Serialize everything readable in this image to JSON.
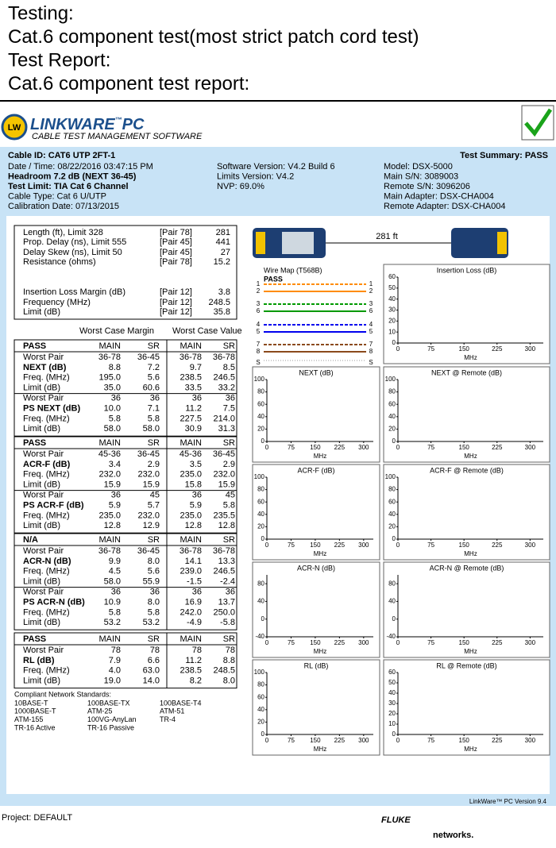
{
  "header": {
    "lines": [
      "Testing:",
      "Cat.6 component test(most strict patch cord test)",
      "Test Report:",
      "Cat.6 component test report:"
    ]
  },
  "logo": {
    "badge": "LW",
    "brand": "LINKWARE",
    "tm": "™",
    "pc": "PC",
    "subtitle": "CABLE TEST MANAGEMENT SOFTWARE"
  },
  "cable_id": "Cable ID: CAT6 UTP 2FT-1",
  "test_summary": "Test Summary: PASS",
  "info": [
    [
      "Date / Time: 08/22/2016  03:47:15 PM",
      "Headroom 7.2 dB (NEXT 36-45)",
      "Test Limit: TIA Cat 6 Channel",
      "Cable Type: Cat 6 U/UTP",
      "Calibration Date: 07/13/2015"
    ],
    [
      "Software Version: V4.2 Build 6",
      "Limits Version: V4.2",
      "NVP: 69.0%"
    ],
    [
      "Model: DSX-5000",
      "Main S/N: 3089003",
      "Remote S/N: 3096206",
      "Main Adapter: DSX-CHA004",
      "Remote Adapter: DSX-CHA004"
    ]
  ],
  "summary": [
    [
      [
        "Length (ft), Limit 328",
        "[Pair 78]",
        "281"
      ],
      [
        "Prop. Delay (ns), Limit 555",
        "[Pair 45]",
        "441"
      ],
      [
        "Delay Skew (ns), Limit 50",
        "[Pair 45]",
        "27"
      ],
      [
        "Resistance (ohms)",
        "[Pair 78]",
        "15.2"
      ]
    ],
    [
      [
        "Insertion Loss Margin (dB)",
        "[Pair 12]",
        "3.8"
      ],
      [
        "Frequency (MHz)",
        "[Pair 12]",
        "248.5"
      ],
      [
        "Limit (dB)",
        "[Pair 12]",
        "35.8"
      ]
    ]
  ],
  "worst_case": [
    "Worst Case Margin",
    "Worst Case Value"
  ],
  "blocks": [
    {
      "header": [
        "PASS",
        "MAIN",
        "SR",
        "MAIN",
        "SR"
      ],
      "groups": [
        [
          [
            "Worst Pair",
            "36-78",
            "36-45",
            "36-78",
            "36-78"
          ],
          [
            "NEXT (dB)",
            "8.8",
            "7.2",
            "9.7",
            "8.5"
          ],
          [
            "Freq. (MHz)",
            "195.0",
            "5.6",
            "238.5",
            "246.5"
          ],
          [
            "Limit (dB)",
            "35.0",
            "60.6",
            "33.5",
            "33.2"
          ]
        ],
        [
          [
            "Worst Pair",
            "36",
            "36",
            "36",
            "36"
          ],
          [
            "PS NEXT (dB)",
            "10.0",
            "7.1",
            "11.2",
            "7.5"
          ],
          [
            "Freq. (MHz)",
            "5.8",
            "5.8",
            "227.5",
            "214.0"
          ],
          [
            "Limit (dB)",
            "58.0",
            "58.0",
            "30.9",
            "31.3"
          ]
        ]
      ]
    },
    {
      "header": [
        "PASS",
        "MAIN",
        "SR",
        "MAIN",
        "SR"
      ],
      "groups": [
        [
          [
            "Worst Pair",
            "45-36",
            "36-45",
            "45-36",
            "36-45"
          ],
          [
            "ACR-F (dB)",
            "3.4",
            "2.9",
            "3.5",
            "2.9"
          ],
          [
            "Freq. (MHz)",
            "232.0",
            "232.0",
            "235.0",
            "232.0"
          ],
          [
            "Limit (dB)",
            "15.9",
            "15.9",
            "15.8",
            "15.9"
          ]
        ],
        [
          [
            "Worst Pair",
            "36",
            "45",
            "36",
            "45"
          ],
          [
            "PS ACR-F (dB)",
            "5.9",
            "5.7",
            "5.9",
            "5.8"
          ],
          [
            "Freq. (MHz)",
            "235.0",
            "232.0",
            "235.0",
            "235.5"
          ],
          [
            "Limit (dB)",
            "12.8",
            "12.9",
            "12.8",
            "12.8"
          ]
        ]
      ]
    },
    {
      "header": [
        "N/A",
        "MAIN",
        "SR",
        "MAIN",
        "SR"
      ],
      "groups": [
        [
          [
            "Worst Pair",
            "36-78",
            "36-45",
            "36-78",
            "36-78"
          ],
          [
            "ACR-N (dB)",
            "9.9",
            "8.0",
            "14.1",
            "13.3"
          ],
          [
            "Freq. (MHz)",
            "4.5",
            "5.6",
            "239.0",
            "246.5"
          ],
          [
            "Limit (dB)",
            "58.0",
            "55.9",
            "-1.5",
            "-2.4"
          ]
        ],
        [
          [
            "Worst Pair",
            "36",
            "36",
            "36",
            "36"
          ],
          [
            "PS ACR-N (dB)",
            "10.9",
            "8.0",
            "16.9",
            "13.7"
          ],
          [
            "Freq. (MHz)",
            "5.8",
            "5.8",
            "242.0",
            "250.0"
          ],
          [
            "Limit (dB)",
            "53.2",
            "53.2",
            "-4.9",
            "-5.8"
          ]
        ]
      ]
    },
    {
      "header": [
        "PASS",
        "MAIN",
        "SR",
        "MAIN",
        "SR"
      ],
      "groups": [
        [
          [
            "Worst Pair",
            "78",
            "78",
            "78",
            "78"
          ],
          [
            "RL (dB)",
            "7.9",
            "6.6",
            "11.2",
            "8.8"
          ],
          [
            "Freq. (MHz)",
            "4.0",
            "63.0",
            "238.5",
            "248.5"
          ],
          [
            "Limit (dB)",
            "19.0",
            "14.0",
            "8.2",
            "8.0"
          ]
        ]
      ]
    }
  ],
  "standards": {
    "title": "Compliant Network Standards:",
    "items": [
      "10BASE-T",
      "100BASE-TX",
      "100BASE-T4",
      "1000BASE-T",
      "ATM-25",
      "ATM-51",
      "ATM-155",
      "100VG-AnyLan",
      "TR-4",
      "TR-16 Active",
      "TR-16 Passive"
    ]
  },
  "length_label": "281 ft",
  "wire_map": {
    "title": "Wire Map (T568B)",
    "result": "PASS",
    "pins": [
      "1",
      "2",
      "3",
      "6",
      "4",
      "5",
      "7",
      "8"
    ],
    "shield": "S",
    "pair_colors": [
      "#ff8c00",
      "#009900",
      "#0000ee",
      "#8b4a1c"
    ]
  },
  "plots": [
    {
      "title": "Insertion Loss (dB)",
      "xlabel": "MHz",
      "xlim": [
        0,
        330
      ],
      "xticks": [
        0,
        75,
        150,
        225,
        300
      ],
      "ylim": [
        0,
        60
      ],
      "yticks": [
        0,
        10,
        20,
        30,
        40,
        50,
        60
      ]
    },
    {
      "title": "NEXT (dB)",
      "xlabel": "MHz",
      "xlim": [
        0,
        330
      ],
      "xticks": [
        0,
        75,
        150,
        225,
        300
      ],
      "ylim": [
        0,
        100
      ],
      "yticks": [
        0,
        20,
        40,
        60,
        80,
        100
      ]
    },
    {
      "title": "NEXT @ Remote (dB)",
      "xlabel": "MHz",
      "xlim": [
        0,
        330
      ],
      "xticks": [
        0,
        75,
        150,
        225,
        300
      ],
      "ylim": [
        0,
        100
      ],
      "yticks": [
        0,
        20,
        40,
        60,
        80,
        100
      ]
    },
    {
      "title": "ACR-F (dB)",
      "xlabel": "MHz",
      "xlim": [
        0,
        330
      ],
      "xticks": [
        0,
        75,
        150,
        225,
        300
      ],
      "ylim": [
        0,
        100
      ],
      "yticks": [
        0,
        20,
        40,
        60,
        80,
        100
      ]
    },
    {
      "title": "ACR-F @ Remote (dB)",
      "xlabel": "MHz",
      "xlim": [
        0,
        330
      ],
      "xticks": [
        0,
        75,
        150,
        225,
        300
      ],
      "ylim": [
        0,
        100
      ],
      "yticks": [
        0,
        20,
        40,
        60,
        80,
        100
      ]
    },
    {
      "title": "ACR-N (dB)",
      "xlabel": "MHz",
      "xlim": [
        0,
        330
      ],
      "xticks": [
        0,
        75,
        150,
        225,
        300
      ],
      "ylim": [
        -40,
        100
      ],
      "yticks": [
        -40,
        0,
        40,
        80
      ]
    },
    {
      "title": "ACR-N @ Remote (dB)",
      "xlabel": "MHz",
      "xlim": [
        0,
        330
      ],
      "xticks": [
        0,
        75,
        150,
        225,
        300
      ],
      "ylim": [
        -40,
        100
      ],
      "yticks": [
        -40,
        0,
        40,
        80
      ]
    },
    {
      "title": "RL (dB)",
      "xlabel": "MHz",
      "xlim": [
        0,
        330
      ],
      "xticks": [
        0,
        75,
        150,
        225,
        300
      ],
      "ylim": [
        0,
        100
      ],
      "yticks": [
        0,
        20,
        40,
        60,
        80,
        100
      ]
    },
    {
      "title": "RL @ Remote (dB)",
      "xlabel": "MHz",
      "xlim": [
        0,
        330
      ],
      "xticks": [
        0,
        75,
        150,
        225,
        300
      ],
      "ylim": [
        0,
        60
      ],
      "yticks": [
        0,
        10,
        20,
        30,
        40,
        50,
        60
      ]
    }
  ],
  "version": "LinkWare™ PC Version 9.4",
  "project": "Project: DEFAULT",
  "brand_footer": {
    "fluke": "FLUKE",
    "networks": "networks."
  }
}
